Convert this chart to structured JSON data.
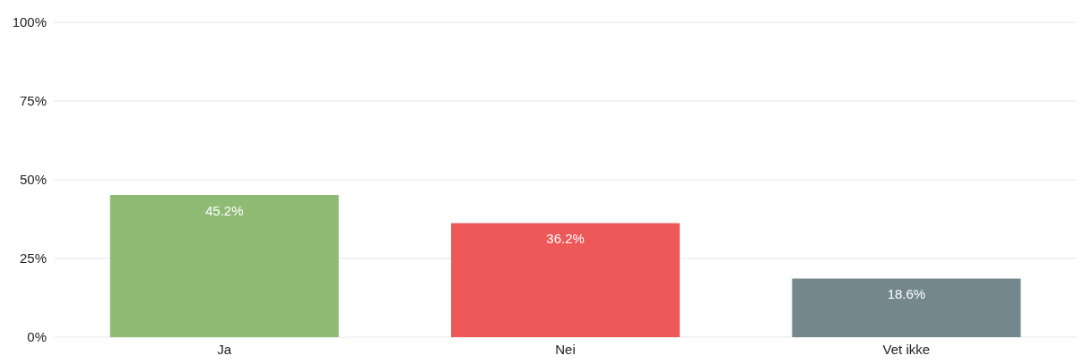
{
  "chart_data": {
    "type": "bar",
    "categories": [
      "Ja",
      "Nei",
      "Vet ikke"
    ],
    "values": [
      45.2,
      36.2,
      18.6
    ],
    "colors": [
      "#8fbb74",
      "#ed5858",
      "#73878c"
    ],
    "value_labels": [
      "45.2%",
      "36.2%",
      "18.6%"
    ],
    "ylim": [
      0,
      100
    ],
    "yticks": [
      {
        "value": 0,
        "label": "0%"
      },
      {
        "value": 25,
        "label": "25%"
      },
      {
        "value": 50,
        "label": "50%"
      },
      {
        "value": 75,
        "label": "75%"
      },
      {
        "value": 100,
        "label": "100%"
      }
    ],
    "grid": "y"
  }
}
